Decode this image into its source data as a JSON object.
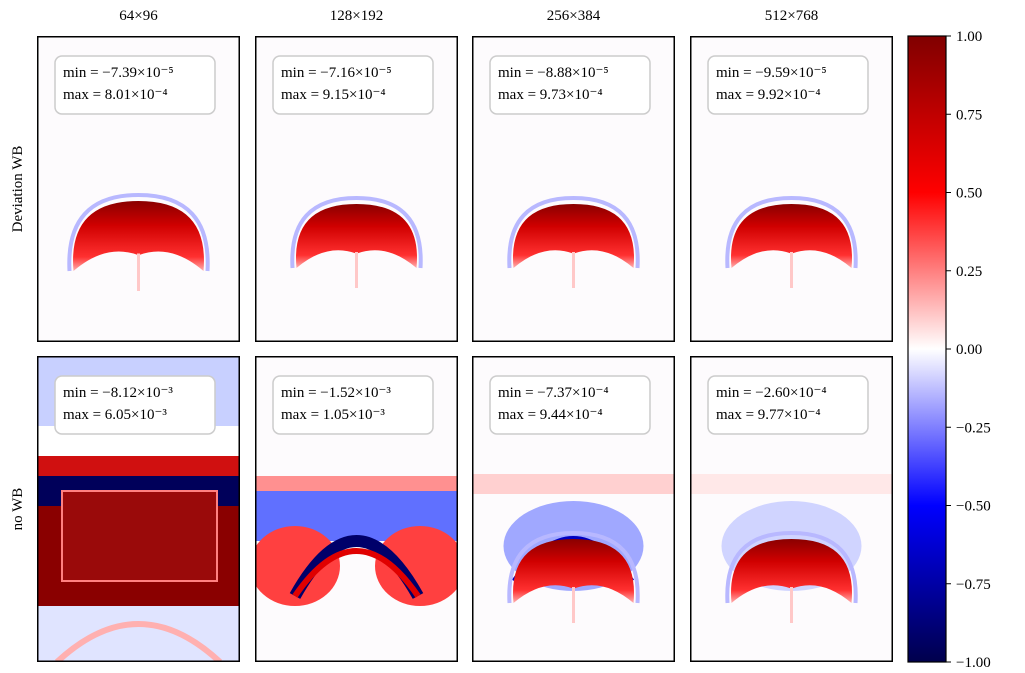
{
  "chart_data": {
    "type": "heatmap-grid",
    "columns": [
      "64×96",
      "128×192",
      "256×384",
      "512×768"
    ],
    "rows": [
      "Deviation WB",
      "no WB"
    ],
    "panels": [
      [
        {
          "min": "min = −7.39×10⁻⁵",
          "max": "max = 8.01×10⁻⁴"
        },
        {
          "min": "min = −7.16×10⁻⁵",
          "max": "max = 9.15×10⁻⁴"
        },
        {
          "min": "min = −8.88×10⁻⁵",
          "max": "max = 9.73×10⁻⁴"
        },
        {
          "min": "min = −9.59×10⁻⁵",
          "max": "max = 9.92×10⁻⁴"
        }
      ],
      [
        {
          "min": "min = −8.12×10⁻³",
          "max": "max = 6.05×10⁻³"
        },
        {
          "min": "min = −1.52×10⁻³",
          "max": "max = 1.05×10⁻³"
        },
        {
          "min": "min = −7.37×10⁻⁴",
          "max": "max = 9.44×10⁻⁴"
        },
        {
          "min": "min = −2.60×10⁻⁴",
          "max": "max = 9.77×10⁻⁴"
        }
      ]
    ],
    "colorbar": {
      "ylim": [
        -1,
        1
      ],
      "yticks": [
        {
          "value": 1,
          "label": "1.00"
        },
        {
          "value": 0.75,
          "label": "0.75"
        },
        {
          "value": 0.5,
          "label": "0.50"
        },
        {
          "value": 0.25,
          "label": "0.25"
        },
        {
          "value": 0,
          "label": "0.00"
        },
        {
          "value": -0.25,
          "label": "−0.25"
        },
        {
          "value": -0.5,
          "label": "−0.50"
        },
        {
          "value": -0.75,
          "label": "−0.75"
        },
        {
          "value": -1,
          "label": "−1.00"
        }
      ],
      "colors": [
        "#00004c",
        "#0000ff",
        "#ffffff",
        "#ff0000",
        "#800000"
      ]
    }
  }
}
